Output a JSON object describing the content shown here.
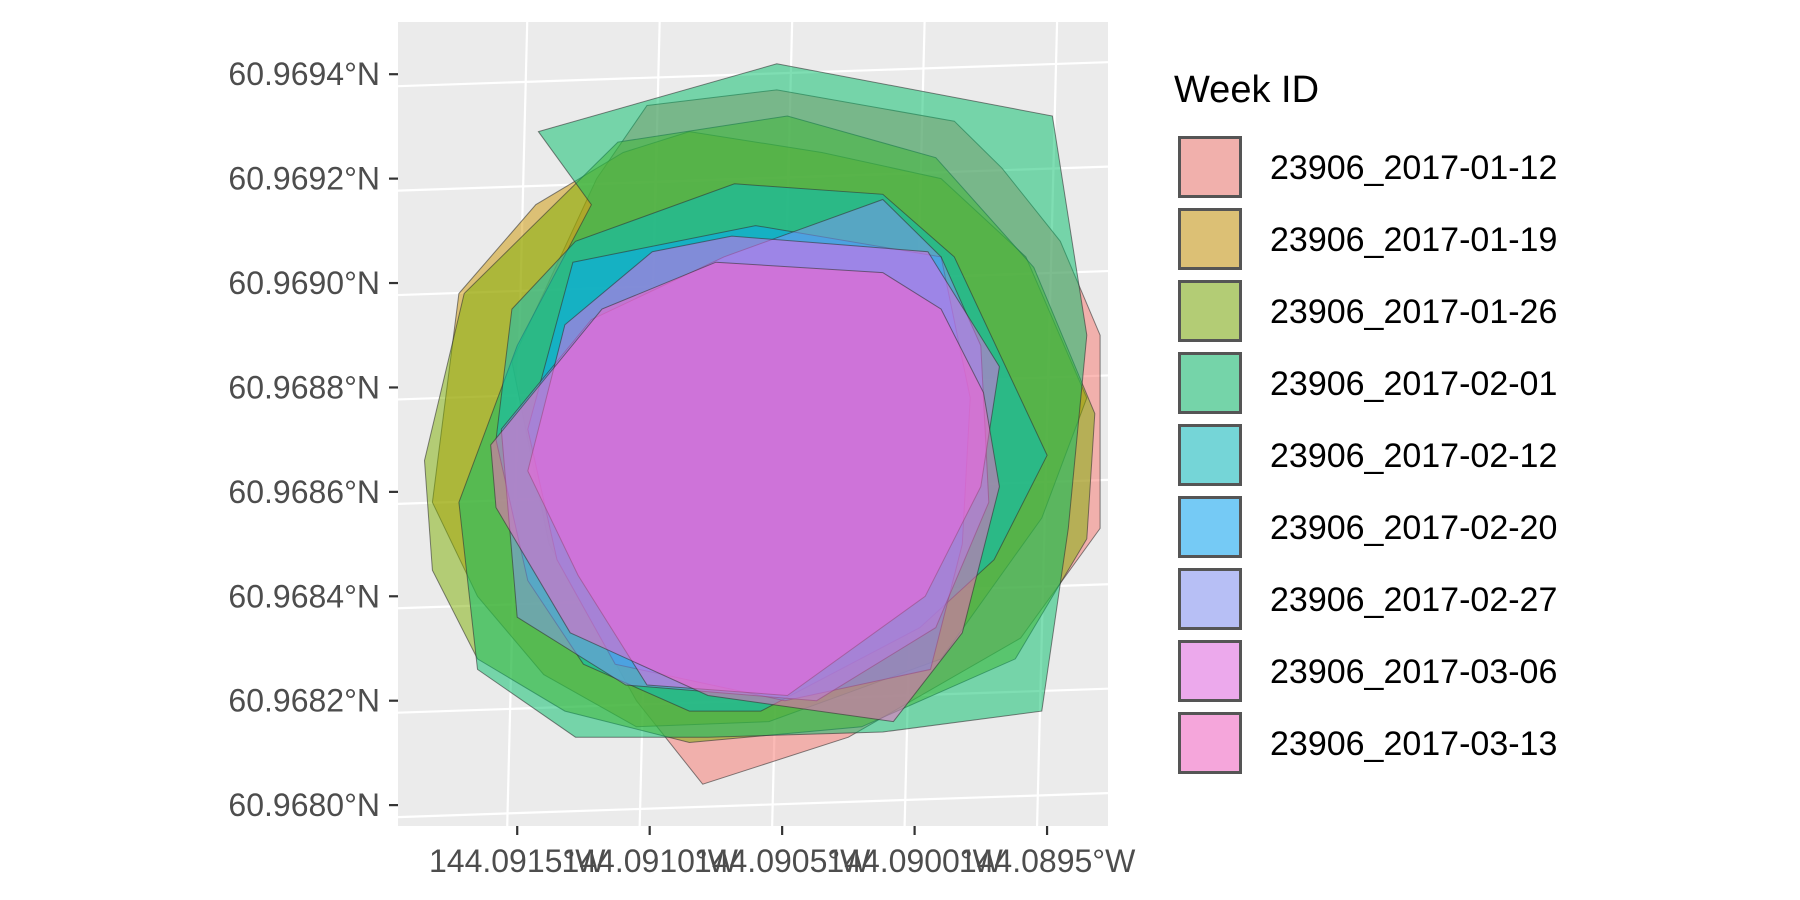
{
  "chart_data": {
    "type": "polygon-map",
    "title": "",
    "xlabel": "",
    "ylabel": "",
    "grid": true,
    "legend_position": "right",
    "legend_title": "Week ID",
    "x_ticks": [
      "144.0915°W",
      "144.0910°W",
      "144.0905°W",
      "144.0900°W",
      "144.0895°W"
    ],
    "y_ticks": [
      "60.9694°N",
      "60.9692°N",
      "60.9690°N",
      "60.9688°N",
      "60.9686°N",
      "60.9684°N",
      "60.9682°N",
      "60.9680°N"
    ],
    "x_tick_values": [
      -144.0915,
      -144.091,
      -144.0905,
      -144.09,
      -144.0895
    ],
    "y_tick_values": [
      60.9694,
      60.9692,
      60.969,
      60.9688,
      60.9686,
      60.9684,
      60.9682,
      60.968
    ],
    "xlim": [
      -144.09195,
      -144.08927
    ],
    "ylim": [
      60.96796,
      60.9695
    ],
    "series": [
      {
        "name": "23906_2017-01-12",
        "color": "#f8766d",
        "polygon": [
          [
            -144.09101,
            60.96934
          ],
          [
            -144.09052,
            60.96937
          ],
          [
            -144.08985,
            60.96931
          ],
          [
            -144.08967,
            60.96922
          ],
          [
            -144.08945,
            60.96908
          ],
          [
            -144.0893,
            60.9689
          ],
          [
            -144.0893,
            60.96853
          ],
          [
            -144.0896,
            60.96832
          ],
          [
            -144.09025,
            60.96813
          ],
          [
            -144.0908,
            60.96804
          ],
          [
            -144.09105,
            60.9682
          ],
          [
            -144.09138,
            60.9685
          ],
          [
            -144.09152,
            60.96885
          ],
          [
            -144.0912,
            60.9692
          ]
        ]
      },
      {
        "name": "23906_2017-01-19",
        "color": "#cd9600",
        "polygon": [
          [
            -144.09085,
            60.96929
          ],
          [
            -144.0911,
            60.96925
          ],
          [
            -144.09143,
            60.96915
          ],
          [
            -144.09172,
            60.96898
          ],
          [
            -144.09182,
            60.96858
          ],
          [
            -144.09165,
            60.9684
          ],
          [
            -144.0914,
            60.96825
          ],
          [
            -144.09105,
            60.96815
          ],
          [
            -144.09055,
            60.96816
          ],
          [
            -144.0899,
            60.96828
          ],
          [
            -144.08952,
            60.96855
          ],
          [
            -144.08935,
            60.96878
          ],
          [
            -144.08958,
            60.96905
          ],
          [
            -144.0899,
            60.9692
          ],
          [
            -144.09035,
            60.96925
          ]
        ]
      },
      {
        "name": "23906_2017-01-26",
        "color": "#7cae00",
        "polygon": [
          [
            -144.09185,
            60.96866
          ],
          [
            -144.0917,
            60.96898
          ],
          [
            -144.09112,
            60.96927
          ],
          [
            -144.09048,
            60.96932
          ],
          [
            -144.08992,
            60.96924
          ],
          [
            -144.08955,
            60.96903
          ],
          [
            -144.08932,
            60.96875
          ],
          [
            -144.08935,
            60.96851
          ],
          [
            -144.08962,
            60.96828
          ],
          [
            -144.0902,
            60.96815
          ],
          [
            -144.09085,
            60.96812
          ],
          [
            -144.09132,
            60.96818
          ],
          [
            -144.09165,
            60.96828
          ],
          [
            -144.09182,
            60.96845
          ]
        ]
      },
      {
        "name": "23906_2017-02-01",
        "color": "#00be67",
        "polygon": [
          [
            -144.09142,
            60.96929
          ],
          [
            -144.09052,
            60.96942
          ],
          [
            -144.08948,
            60.96932
          ],
          [
            -144.08935,
            60.9689
          ],
          [
            -144.08942,
            60.96853
          ],
          [
            -144.08952,
            60.96818
          ],
          [
            -144.09012,
            60.96814
          ],
          [
            -144.09078,
            60.96813
          ],
          [
            -144.09128,
            60.96813
          ],
          [
            -144.09165,
            60.96826
          ],
          [
            -144.09172,
            60.96858
          ],
          [
            -144.0915,
            60.96888
          ],
          [
            -144.09122,
            60.96915
          ]
        ]
      },
      {
        "name": "23906_2017-02-12",
        "color": "#00bfc4",
        "polygon": [
          [
            -144.09158,
            60.9687
          ],
          [
            -144.09152,
            60.96895
          ],
          [
            -144.09128,
            60.96908
          ],
          [
            -144.09068,
            60.96919
          ],
          [
            -144.09012,
            60.96917
          ],
          [
            -144.08985,
            60.96905
          ],
          [
            -144.0895,
            60.96867
          ],
          [
            -144.0897,
            60.96847
          ],
          [
            -144.08998,
            60.96834
          ],
          [
            -144.09058,
            60.96818
          ],
          [
            -144.09085,
            60.96818
          ],
          [
            -144.09125,
            60.96827
          ],
          [
            -144.09146,
            60.96843
          ]
        ]
      },
      {
        "name": "23906_2017-02-20",
        "color": "#00a9ff",
        "polygon": [
          [
            -144.09129,
            60.96904
          ],
          [
            -144.0906,
            60.96911
          ],
          [
            -144.0899,
            60.96905
          ],
          [
            -144.08979,
            60.96878
          ],
          [
            -144.08982,
            60.9685
          ],
          [
            -144.08994,
            60.96826
          ],
          [
            -144.09049,
            60.9682
          ],
          [
            -144.09113,
            60.96827
          ],
          [
            -144.09135,
            60.96847
          ],
          [
            -144.09146,
            60.96872
          ]
        ]
      },
      {
        "name": "23906_2017-02-27",
        "color": "#8494ff",
        "polygon": [
          [
            -144.09012,
            60.96916
          ],
          [
            -144.0899,
            60.96905
          ],
          [
            -144.08975,
            60.96888
          ],
          [
            -144.08972,
            60.96858
          ],
          [
            -144.08992,
            60.96834
          ],
          [
            -144.09037,
            60.9682
          ],
          [
            -144.09109,
            60.96823
          ],
          [
            -144.0915,
            60.96836
          ],
          [
            -144.09156,
            60.96872
          ],
          [
            -144.09122,
            60.96893
          ],
          [
            -144.09072,
            60.96905
          ]
        ]
      },
      {
        "name": "23906_2017-03-06",
        "color": "#ed68ed",
        "polygon": [
          [
            -144.09069,
            60.96909
          ],
          [
            -144.08995,
            60.96906
          ],
          [
            -144.08968,
            60.96884
          ],
          [
            -144.08975,
            60.96861
          ],
          [
            -144.08996,
            60.9684
          ],
          [
            -144.09048,
            60.96821
          ],
          [
            -144.09101,
            60.96823
          ],
          [
            -144.09127,
            60.96844
          ],
          [
            -144.09146,
            60.96864
          ],
          [
            -144.09132,
            60.96892
          ],
          [
            -144.09099,
            60.96906
          ]
        ]
      },
      {
        "name": "23906_2017-03-13",
        "color": "#ff61cc",
        "polygon": [
          [
            -144.09012,
            60.96902
          ],
          [
            -144.09075,
            60.96904
          ],
          [
            -144.09118,
            60.96895
          ],
          [
            -144.0916,
            60.96869
          ],
          [
            -144.09158,
            60.96857
          ],
          [
            -144.0913,
            60.96833
          ],
          [
            -144.09078,
            60.96821
          ],
          [
            -144.09008,
            60.96816
          ],
          [
            -144.08982,
            60.96833
          ],
          [
            -144.08968,
            60.96861
          ],
          [
            -144.08974,
            60.96879
          ],
          [
            -144.0899,
            60.96895
          ]
        ]
      }
    ]
  }
}
